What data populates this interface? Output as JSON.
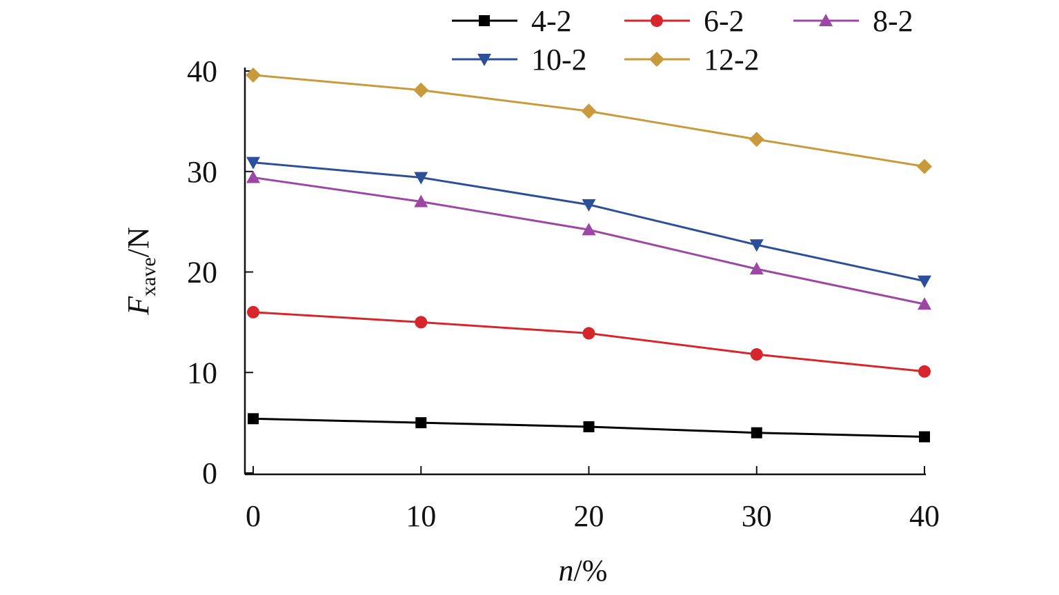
{
  "chart_data": {
    "type": "line",
    "x": [
      0,
      10,
      20,
      30,
      40
    ],
    "xlim": [
      0,
      40
    ],
    "ylim": [
      0,
      40
    ],
    "xticks": [
      "0",
      "10",
      "20",
      "30",
      "40"
    ],
    "yticks": [
      "0",
      "10",
      "20",
      "30",
      "40"
    ],
    "xlabel": {
      "italic": "n",
      "rest": "/%"
    },
    "ylabel": {
      "italic": "F",
      "subscript": "xave",
      "rest": "/N"
    },
    "grid": false,
    "legend_position": "top",
    "series": [
      {
        "name": "4-2",
        "color": "#000000",
        "marker": "square",
        "values": [
          5.4,
          5.0,
          4.6,
          4.0,
          3.6
        ]
      },
      {
        "name": "6-2",
        "color": "#d7262b",
        "marker": "circle",
        "values": [
          16.0,
          15.0,
          13.9,
          11.8,
          10.1
        ]
      },
      {
        "name": "8-2",
        "color": "#9b47a3",
        "marker": "triangle-up",
        "values": [
          29.4,
          27.0,
          24.2,
          20.3,
          16.8
        ]
      },
      {
        "name": "10-2",
        "color": "#2c4f9a",
        "marker": "triangle-down",
        "values": [
          30.9,
          29.4,
          26.7,
          22.7,
          19.1
        ]
      },
      {
        "name": "12-2",
        "color": "#c99a3c",
        "marker": "diamond",
        "values": [
          39.6,
          38.1,
          36.0,
          33.2,
          30.5
        ]
      }
    ]
  }
}
